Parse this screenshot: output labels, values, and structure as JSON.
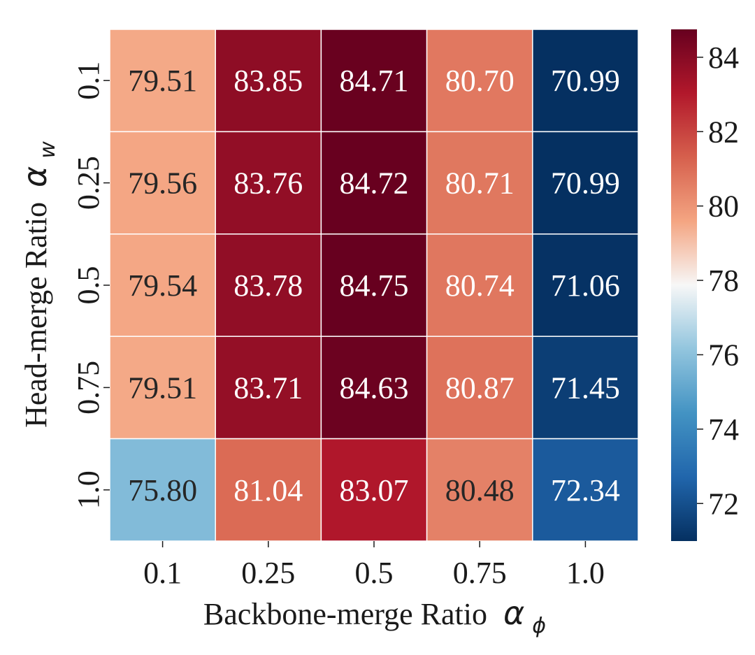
{
  "chart_data": {
    "type": "heatmap",
    "xlabel": "Backbone-merge Ratio",
    "xlabel_symbol": "α",
    "xlabel_subscript": "ϕ",
    "ylabel": "Head-merge Ratio",
    "ylabel_symbol": "α",
    "ylabel_subscript": "w",
    "x_categories": [
      "0.1",
      "0.25",
      "0.5",
      "0.75",
      "1.0"
    ],
    "y_categories": [
      "0.1",
      "0.25",
      "0.5",
      "0.75",
      "1.0"
    ],
    "values": [
      [
        "79.51",
        "83.85",
        "84.71",
        "80.70",
        "70.99"
      ],
      [
        "79.56",
        "83.76",
        "84.72",
        "80.71",
        "70.99"
      ],
      [
        "79.54",
        "83.78",
        "84.75",
        "80.74",
        "71.06"
      ],
      [
        "79.51",
        "83.71",
        "84.63",
        "80.87",
        "71.45"
      ],
      [
        "75.80",
        "81.04",
        "83.07",
        "80.48",
        "72.34"
      ]
    ],
    "colormap": "RdBu_r",
    "color_range": [
      70.99,
      84.75
    ],
    "colorbar_ticks": [
      "84",
      "82",
      "80",
      "78",
      "76",
      "74",
      "72"
    ],
    "grid": true
  }
}
